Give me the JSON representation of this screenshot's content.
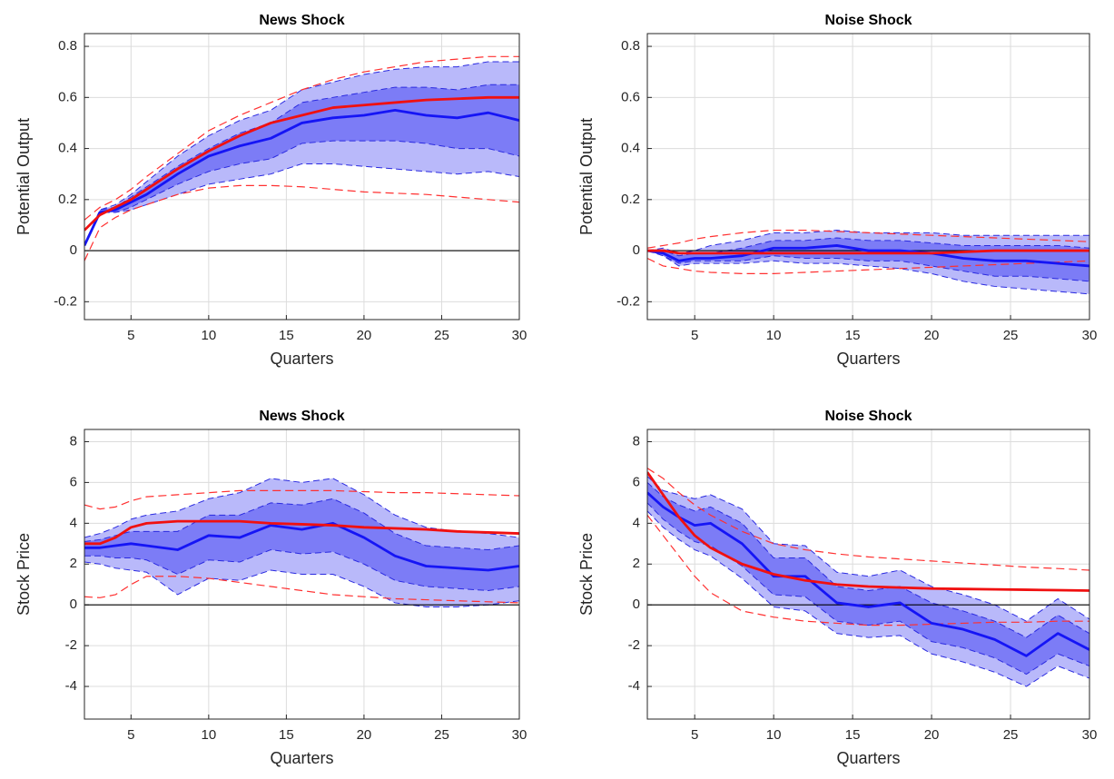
{
  "chart_data": [
    {
      "type": "line",
      "title": "News Shock",
      "xlabel": "Quarters",
      "ylabel": "Potential Output",
      "x": [
        2,
        3,
        4,
        5,
        6,
        8,
        10,
        12,
        14,
        16,
        18,
        20,
        22,
        24,
        26,
        28,
        30
      ],
      "xlim": [
        2,
        30
      ],
      "xticks": [
        5,
        10,
        15,
        20,
        25,
        30
      ],
      "ylim": [
        -0.27,
        0.85
      ],
      "yticks": [
        -0.2,
        0,
        0.2,
        0.4,
        0.6,
        0.8
      ],
      "grid": true,
      "zero_line": true,
      "bands": [
        {
          "color": "#b9b9fa",
          "edge_color": "#2a2ae0",
          "lower": [
            0.02,
            0.15,
            0.15,
            0.16,
            0.18,
            0.22,
            0.26,
            0.28,
            0.3,
            0.34,
            0.34,
            0.33,
            0.32,
            0.31,
            0.3,
            0.31,
            0.29
          ],
          "upper": [
            0.02,
            0.16,
            0.18,
            0.22,
            0.27,
            0.37,
            0.45,
            0.51,
            0.55,
            0.63,
            0.66,
            0.69,
            0.71,
            0.72,
            0.72,
            0.74,
            0.74
          ]
        },
        {
          "color": "#7c7cf6",
          "edge_color": "#2a2ae0",
          "lower": [
            0.02,
            0.15,
            0.15,
            0.17,
            0.2,
            0.26,
            0.31,
            0.34,
            0.36,
            0.42,
            0.43,
            0.43,
            0.43,
            0.42,
            0.4,
            0.4,
            0.37
          ],
          "upper": [
            0.02,
            0.16,
            0.17,
            0.21,
            0.25,
            0.33,
            0.4,
            0.46,
            0.5,
            0.58,
            0.6,
            0.62,
            0.64,
            0.64,
            0.63,
            0.65,
            0.65
          ]
        }
      ],
      "series": [
        {
          "color": "#ff3030",
          "dashed": true,
          "values": [
            0.12,
            0.17,
            0.2,
            0.24,
            0.29,
            0.38,
            0.47,
            0.53,
            0.58,
            0.63,
            0.67,
            0.7,
            0.72,
            0.74,
            0.75,
            0.76,
            0.76
          ]
        },
        {
          "color": "#ff3030",
          "dashed": true,
          "values": [
            -0.04,
            0.09,
            0.13,
            0.16,
            0.18,
            0.22,
            0.245,
            0.255,
            0.255,
            0.25,
            0.24,
            0.23,
            0.225,
            0.22,
            0.21,
            0.2,
            0.19
          ]
        },
        {
          "color": "#1515f5",
          "dashed": false,
          "values": [
            0.02,
            0.15,
            0.16,
            0.19,
            0.22,
            0.3,
            0.37,
            0.41,
            0.44,
            0.5,
            0.52,
            0.53,
            0.55,
            0.53,
            0.52,
            0.54,
            0.51
          ]
        },
        {
          "color": "#f01010",
          "dashed": false,
          "values": [
            0.08,
            0.14,
            0.17,
            0.2,
            0.24,
            0.32,
            0.39,
            0.45,
            0.5,
            0.53,
            0.56,
            0.57,
            0.58,
            0.59,
            0.595,
            0.6,
            0.6
          ]
        }
      ]
    },
    {
      "type": "line",
      "title": "Noise Shock",
      "xlabel": "Quarters",
      "ylabel": "Potential Output",
      "x": [
        2,
        3,
        4,
        5,
        6,
        8,
        10,
        12,
        14,
        16,
        18,
        20,
        22,
        24,
        26,
        28,
        30
      ],
      "xlim": [
        2,
        30
      ],
      "xticks": [
        5,
        10,
        15,
        20,
        25,
        30
      ],
      "ylim": [
        -0.27,
        0.85
      ],
      "yticks": [
        -0.2,
        0,
        0.2,
        0.4,
        0.6,
        0.8
      ],
      "grid": true,
      "zero_line": true,
      "bands": [
        {
          "color": "#b9b9fa",
          "edge_color": "#2a2ae0",
          "lower": [
            0,
            -0.02,
            -0.06,
            -0.05,
            -0.05,
            -0.05,
            -0.04,
            -0.05,
            -0.05,
            -0.06,
            -0.07,
            -0.09,
            -0.12,
            -0.14,
            -0.15,
            -0.16,
            -0.17
          ],
          "upper": [
            0,
            0.01,
            -0.01,
            0,
            0.02,
            0.04,
            0.07,
            0.07,
            0.08,
            0.07,
            0.07,
            0.07,
            0.06,
            0.06,
            0.06,
            0.06,
            0.06
          ]
        },
        {
          "color": "#7c7cf6",
          "edge_color": "#2a2ae0",
          "lower": [
            0,
            -0.02,
            -0.05,
            -0.04,
            -0.04,
            -0.04,
            -0.02,
            -0.03,
            -0.03,
            -0.04,
            -0.04,
            -0.06,
            -0.08,
            -0.1,
            -0.1,
            -0.11,
            -0.12
          ],
          "upper": [
            0,
            0,
            -0.02,
            -0.01,
            -0.01,
            0.01,
            0.04,
            0.04,
            0.05,
            0.04,
            0.04,
            0.03,
            0.02,
            0.02,
            0.02,
            0.02,
            0.01
          ]
        }
      ],
      "series": [
        {
          "color": "#ff3030",
          "dashed": true,
          "values": [
            0.01,
            0.02,
            0.03,
            0.045,
            0.055,
            0.07,
            0.08,
            0.08,
            0.075,
            0.07,
            0.065,
            0.06,
            0.055,
            0.05,
            0.045,
            0.04,
            0.035
          ]
        },
        {
          "color": "#ff3030",
          "dashed": true,
          "values": [
            -0.03,
            -0.06,
            -0.07,
            -0.08,
            -0.085,
            -0.09,
            -0.09,
            -0.085,
            -0.08,
            -0.075,
            -0.07,
            -0.065,
            -0.06,
            -0.055,
            -0.05,
            -0.045,
            -0.04
          ]
        },
        {
          "color": "#1515f5",
          "dashed": false,
          "values": [
            0,
            -0.01,
            -0.04,
            -0.03,
            -0.03,
            -0.02,
            0.01,
            0.01,
            0.02,
            0,
            0,
            -0.01,
            -0.03,
            -0.04,
            -0.04,
            -0.05,
            -0.06
          ]
        },
        {
          "color": "#f01010",
          "dashed": false,
          "values": [
            0,
            0,
            -0.01,
            -0.01,
            -0.01,
            -0.01,
            -0.01,
            -0.01,
            -0.01,
            -0.01,
            -0.01,
            -0.01,
            -0.005,
            0,
            0,
            0,
            0
          ]
        }
      ]
    },
    {
      "type": "line",
      "title": "News Shock",
      "xlabel": "Quarters",
      "ylabel": "Stock Price",
      "x": [
        2,
        3,
        4,
        5,
        6,
        8,
        10,
        12,
        14,
        16,
        18,
        20,
        22,
        24,
        26,
        28,
        30
      ],
      "xlim": [
        2,
        30
      ],
      "xticks": [
        5,
        10,
        15,
        20,
        25,
        30
      ],
      "ylim": [
        -5.6,
        8.6
      ],
      "yticks": [
        -4,
        -2,
        0,
        2,
        4,
        6,
        8
      ],
      "grid": true,
      "zero_line": true,
      "bands": [
        {
          "color": "#b9b9fa",
          "edge_color": "#2a2ae0",
          "lower": [
            2.1,
            2.0,
            1.8,
            1.7,
            1.6,
            0.5,
            1.3,
            1.2,
            1.7,
            1.5,
            1.5,
            0.9,
            0.1,
            -0.1,
            -0.1,
            0,
            0.2
          ],
          "upper": [
            3.3,
            3.5,
            3.8,
            4.2,
            4.4,
            4.6,
            5.2,
            5.5,
            6.2,
            6.0,
            6.2,
            5.4,
            4.4,
            3.8,
            3.6,
            3.5,
            3.3
          ]
        },
        {
          "color": "#7c7cf6",
          "edge_color": "#2a2ae0",
          "lower": [
            2.4,
            2.4,
            2.3,
            2.3,
            2.2,
            1.5,
            2.2,
            2.1,
            2.7,
            2.5,
            2.6,
            2.0,
            1.2,
            0.9,
            0.8,
            0.7,
            0.9
          ],
          "upper": [
            3.1,
            3.2,
            3.4,
            3.6,
            3.6,
            3.6,
            4.4,
            4.4,
            5.0,
            4.9,
            5.2,
            4.5,
            3.5,
            2.9,
            2.8,
            2.7,
            2.9
          ]
        }
      ],
      "series": [
        {
          "color": "#ff3030",
          "dashed": true,
          "values": [
            4.9,
            4.7,
            4.8,
            5.1,
            5.3,
            5.4,
            5.5,
            5.6,
            5.6,
            5.6,
            5.6,
            5.55,
            5.5,
            5.5,
            5.45,
            5.4,
            5.35
          ]
        },
        {
          "color": "#ff3030",
          "dashed": true,
          "values": [
            0.4,
            0.35,
            0.5,
            1.0,
            1.4,
            1.4,
            1.3,
            1.1,
            0.9,
            0.7,
            0.5,
            0.4,
            0.3,
            0.25,
            0.2,
            0.15,
            0.1
          ]
        },
        {
          "color": "#1515f5",
          "dashed": false,
          "values": [
            2.8,
            2.8,
            2.9,
            3.0,
            2.9,
            2.7,
            3.4,
            3.3,
            3.9,
            3.7,
            4.0,
            3.3,
            2.4,
            1.9,
            1.8,
            1.7,
            1.9
          ]
        },
        {
          "color": "#f01010",
          "dashed": false,
          "values": [
            3.0,
            3.0,
            3.3,
            3.8,
            4.0,
            4.1,
            4.1,
            4.1,
            4.0,
            3.95,
            3.9,
            3.8,
            3.75,
            3.7,
            3.6,
            3.55,
            3.5
          ]
        }
      ]
    },
    {
      "type": "line",
      "title": "Noise Shock",
      "xlabel": "Quarters",
      "ylabel": "Stock Price",
      "x": [
        2,
        3,
        4,
        5,
        6,
        8,
        10,
        12,
        14,
        16,
        18,
        20,
        22,
        24,
        26,
        28,
        30
      ],
      "xlim": [
        2,
        30
      ],
      "xticks": [
        5,
        10,
        15,
        20,
        25,
        30
      ],
      "ylim": [
        -5.6,
        8.6
      ],
      "yticks": [
        -4,
        -2,
        0,
        2,
        4,
        6,
        8
      ],
      "grid": true,
      "zero_line": true,
      "bands": [
        {
          "color": "#b9b9fa",
          "edge_color": "#2a2ae0",
          "lower": [
            4.6,
            3.8,
            3.2,
            2.7,
            2.4,
            1.3,
            -0.1,
            -0.3,
            -1.4,
            -1.6,
            -1.5,
            -2.4,
            -2.8,
            -3.3,
            -4.0,
            -3.0,
            -3.6
          ],
          "upper": [
            6.3,
            5.6,
            5.4,
            5.2,
            5.4,
            4.7,
            3.0,
            2.9,
            1.6,
            1.4,
            1.7,
            0.9,
            0.5,
            0,
            -0.8,
            0.3,
            -0.7
          ]
        },
        {
          "color": "#7c7cf6",
          "edge_color": "#2a2ae0",
          "lower": [
            5.0,
            4.2,
            3.6,
            3.1,
            2.9,
            1.9,
            0.5,
            0.4,
            -0.8,
            -1.0,
            -0.8,
            -1.8,
            -2.1,
            -2.6,
            -3.4,
            -2.4,
            -3.0
          ],
          "upper": [
            6.0,
            5.3,
            4.9,
            4.6,
            4.8,
            4.0,
            2.3,
            2.3,
            0.9,
            0.7,
            0.9,
            0.1,
            -0.3,
            -0.8,
            -1.6,
            -0.5,
            -1.4
          ]
        }
      ],
      "series": [
        {
          "color": "#ff3030",
          "dashed": true,
          "values": [
            6.7,
            6.2,
            5.5,
            4.9,
            4.4,
            3.6,
            3.0,
            2.7,
            2.5,
            2.35,
            2.25,
            2.15,
            2.05,
            1.95,
            1.85,
            1.78,
            1.7
          ]
        },
        {
          "color": "#ff3030",
          "dashed": true,
          "values": [
            4.4,
            3.4,
            2.4,
            1.4,
            0.6,
            -0.3,
            -0.6,
            -0.8,
            -0.9,
            -1.0,
            -1.0,
            -0.95,
            -0.9,
            -0.85,
            -0.85,
            -0.8,
            -0.8
          ]
        },
        {
          "color": "#1515f5",
          "dashed": false,
          "values": [
            5.5,
            4.8,
            4.3,
            3.9,
            4.0,
            3.0,
            1.4,
            1.4,
            0.1,
            -0.1,
            0.1,
            -0.9,
            -1.2,
            -1.7,
            -2.5,
            -1.4,
            -2.2
          ]
        },
        {
          "color": "#f01010",
          "dashed": false,
          "values": [
            6.5,
            5.4,
            4.3,
            3.4,
            2.8,
            2.0,
            1.5,
            1.2,
            1.0,
            0.9,
            0.85,
            0.8,
            0.78,
            0.76,
            0.74,
            0.72,
            0.7
          ]
        }
      ]
    }
  ]
}
